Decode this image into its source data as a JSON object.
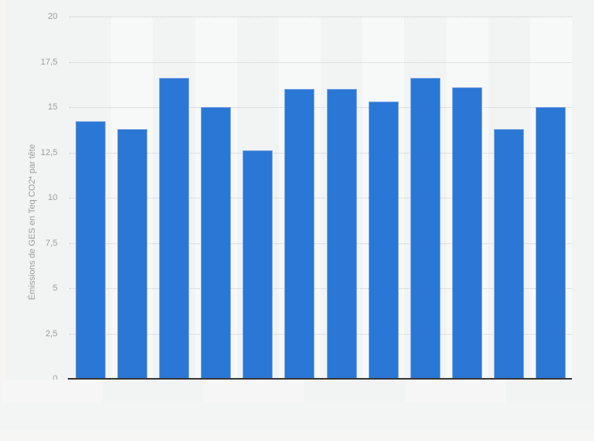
{
  "chart_data": {
    "type": "bar",
    "title": "",
    "xlabel": "",
    "ylabel": "Émissions de GES en Teq CO2* par tête",
    "ylim": [
      0,
      20
    ],
    "ytick_step": 2.5,
    "yticks": [
      0,
      2.5,
      5,
      7.5,
      10,
      12.5,
      15,
      17.5,
      20
    ],
    "ytick_labels": [
      "0",
      "2,5",
      "5",
      "7,5",
      "10",
      "12,5",
      "15",
      "17,5",
      "20"
    ],
    "x_axis_labels_visible": false,
    "n_bars": 12,
    "values": [
      14.2,
      13.8,
      16.6,
      15.0,
      12.6,
      16.0,
      16.0,
      15.3,
      16.6,
      16.1,
      13.8,
      15.0
    ],
    "grid": "horizontal-dotted",
    "legend": "none",
    "plot_band_pattern": "alternating lighter band on even category slots"
  },
  "colors": {
    "bar_fill": "#2b77d5",
    "bar_border": "#6b9ce0",
    "gridline": "#c9c9c9",
    "axis_line": "#383838",
    "tick_label": "#9c9c9c",
    "axis_title": "#9c9c9c",
    "page_bg": "#f2f3f3",
    "band_bg": "#f7f8f8",
    "left_strip": "#f5f4f3",
    "below_axis_band": "#f5f6f5",
    "bottom_bg": "#f3f4f4",
    "bottom_edge": "#f6f6f5"
  }
}
